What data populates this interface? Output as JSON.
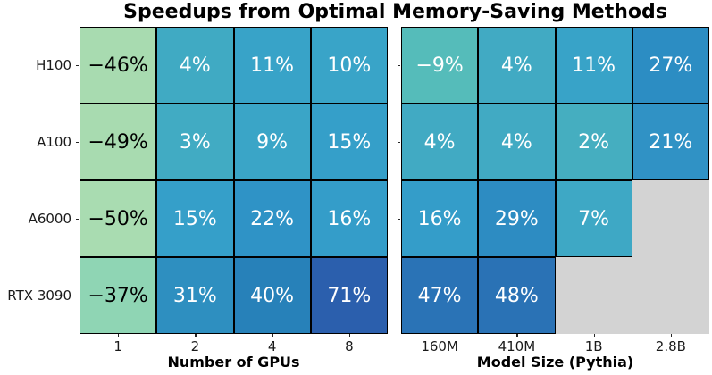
{
  "title": "Speedups from Optimal Memory-Saving Methods",
  "style": {
    "background": "#ffffff",
    "empty_cell_color": "#d3d3d3",
    "cell_border_color": "#000000",
    "text_dark": "#000000",
    "text_light": "#ffffff",
    "tick_color": "#262626",
    "label_color": "#1a1a1a"
  },
  "chart_data": [
    {
      "type": "heatmap",
      "xlabel": "Number of GPUs",
      "x_tick_labels": [
        "1",
        "2",
        "4",
        "8"
      ],
      "y_tick_labels": [
        "H100",
        "A100",
        "A6000",
        "RTX 3090"
      ],
      "unit": "%",
      "values": [
        [
          -46,
          4,
          11,
          10
        ],
        [
          -49,
          3,
          9,
          15
        ],
        [
          -50,
          15,
          22,
          16
        ],
        [
          -37,
          31,
          40,
          71
        ]
      ],
      "cell_colors": [
        [
          "#a8dbb0",
          "#40aac3",
          "#38a3c8",
          "#39a4c8"
        ],
        [
          "#a8dbb0",
          "#41abc3",
          "#3aa5c7",
          "#359fc9"
        ],
        [
          "#a9dcb1",
          "#359fc9",
          "#2f93c6",
          "#349dc9"
        ],
        [
          "#8fd5b4",
          "#2e8fc0",
          "#2781b9",
          "#2b5fad"
        ]
      ]
    },
    {
      "type": "heatmap",
      "xlabel": "Model Size (Pythia)",
      "x_tick_labels": [
        "160M",
        "410M",
        "1B",
        "2.8B"
      ],
      "unit": "%",
      "values": [
        [
          -9,
          4,
          11,
          27
        ],
        [
          4,
          4,
          2,
          21
        ],
        [
          16,
          29,
          7,
          null
        ],
        [
          47,
          48,
          null,
          null
        ]
      ],
      "cell_colors": [
        [
          "#55bcba",
          "#41aac3",
          "#38a3c8",
          "#2c8dc3"
        ],
        [
          "#41aac3",
          "#41aac3",
          "#45aec0",
          "#3092c5"
        ],
        [
          "#349dc9",
          "#2d8cc2",
          "#3ea8c5",
          null
        ],
        [
          "#2a73b6",
          "#2a72b5",
          null,
          null
        ]
      ]
    }
  ]
}
